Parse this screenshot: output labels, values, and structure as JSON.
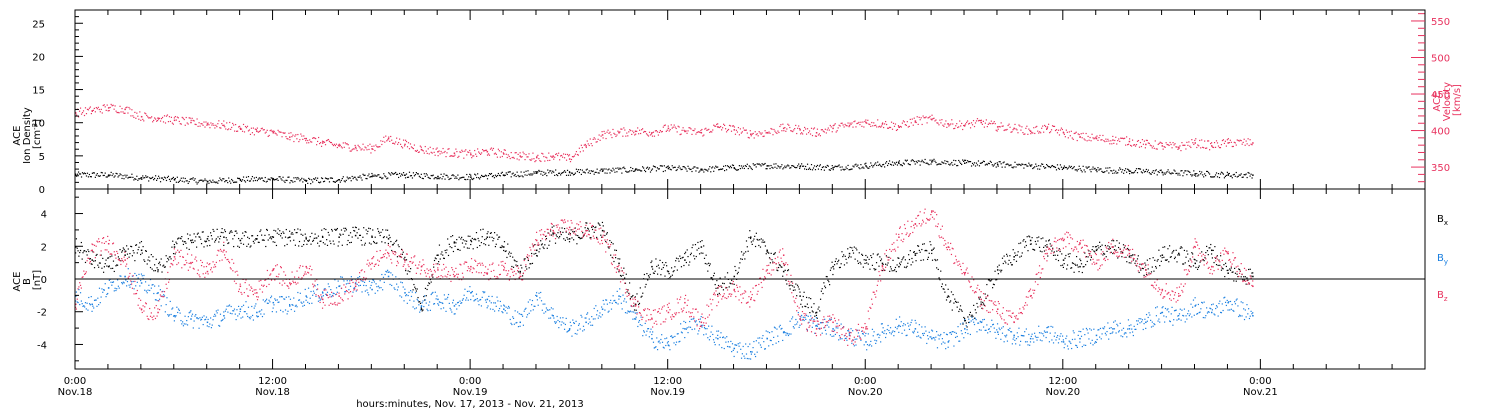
{
  "page": {
    "xaxis_title": "hours:minutes, Nov. 17, 2013 - Nov. 21, 2013",
    "time_ticks": [
      {
        "t": 0,
        "time": "0:00",
        "date": "Nov.18"
      },
      {
        "t": 12,
        "time": "12:00",
        "date": "Nov.18"
      },
      {
        "t": 24,
        "time": "0:00",
        "date": "Nov.19"
      },
      {
        "t": 36,
        "time": "12:00",
        "date": "Nov.19"
      },
      {
        "t": 48,
        "time": "0:00",
        "date": "Nov.20"
      },
      {
        "t": 60,
        "time": "12:00",
        "date": "Nov.20"
      },
      {
        "t": 72,
        "time": "0:00",
        "date": "Nov.21"
      }
    ]
  },
  "chart_data": [
    {
      "type": "scatter",
      "panel": "top",
      "ylabel": "ACE\nIon Density\n[cm^-3]",
      "ylabel_lines": [
        "ACE",
        "Ion Density",
        "[cm"
      ],
      "ylabel_sup": "-3",
      "ylabel_close": "]",
      "ylim": [
        0,
        27
      ],
      "yticks": [
        0,
        5,
        10,
        15,
        20,
        25
      ],
      "y2label_lines": [
        "ACE",
        "Velocity",
        "[km/s]"
      ],
      "y2lim": [
        320,
        565
      ],
      "y2ticks": [
        350,
        400,
        450,
        500,
        550
      ],
      "xlim_hours": [
        0,
        82
      ],
      "grid": false,
      "series": [
        {
          "role": "Ion Density",
          "axis": "left",
          "color": "#000000",
          "data_end_hours": 71.5,
          "x": [
            0,
            2,
            4,
            6,
            8,
            10,
            12,
            14,
            16,
            18,
            20,
            22,
            24,
            26,
            28,
            30,
            32,
            34,
            36,
            38,
            40,
            42,
            44,
            46,
            48,
            50,
            52,
            54,
            56,
            58,
            60,
            62,
            64,
            66,
            68,
            70,
            71.5
          ],
          "y": [
            2.2,
            2.2,
            1.8,
            1.5,
            1.2,
            1.5,
            1.6,
            1.3,
            1.5,
            2.0,
            2.2,
            2.0,
            1.9,
            2.2,
            2.5,
            2.6,
            2.8,
            3.0,
            3.2,
            3.0,
            3.3,
            3.6,
            3.5,
            3.3,
            3.6,
            4.0,
            4.2,
            4.0,
            3.8,
            3.6,
            3.3,
            3.0,
            2.8,
            2.6,
            2.4,
            2.2,
            2.2
          ]
        },
        {
          "role": "Velocity",
          "axis": "right",
          "color": "#e8325e",
          "data_end_hours": 71.5,
          "x": [
            0,
            1,
            2,
            3,
            4,
            5,
            6,
            7,
            8,
            9,
            10,
            11,
            12,
            13,
            14,
            15,
            16,
            17,
            18,
            19,
            20,
            21,
            22,
            23,
            24,
            25,
            26,
            27,
            28,
            29,
            30,
            31,
            32,
            33,
            34,
            35,
            36,
            37,
            38,
            39,
            40,
            41,
            42,
            43,
            44,
            45,
            46,
            47,
            48,
            49,
            50,
            51,
            52,
            53,
            54,
            55,
            56,
            57,
            58,
            59,
            60,
            61,
            62,
            63,
            64,
            65,
            66,
            67,
            68,
            69,
            70,
            71.5
          ],
          "y": [
            425,
            428,
            432,
            430,
            420,
            418,
            415,
            412,
            410,
            408,
            404,
            400,
            398,
            392,
            390,
            384,
            380,
            378,
            376,
            390,
            382,
            375,
            372,
            370,
            368,
            372,
            369,
            366,
            364,
            366,
            362,
            380,
            395,
            398,
            400,
            398,
            404,
            400,
            398,
            406,
            402,
            396,
            398,
            404,
            402,
            398,
            404,
            408,
            412,
            410,
            406,
            414,
            416,
            410,
            408,
            412,
            406,
            404,
            400,
            404,
            398,
            392,
            390,
            388,
            386,
            382,
            380,
            378,
            384,
            380,
            384,
            384
          ]
        }
      ]
    },
    {
      "type": "scatter",
      "panel": "bottom",
      "ylabel": "ACE\nB\n[nT]",
      "ylabel_lines": [
        "ACE",
        "B",
        "[nT]"
      ],
      "ylim": [
        -5.5,
        5.5
      ],
      "yticks": [
        -4,
        -2,
        0,
        2,
        4
      ],
      "xlim_hours": [
        0,
        82
      ],
      "grid": false,
      "zero_line": true,
      "legend_placement": "right",
      "series": [
        {
          "name": "Bx",
          "label_main": "B",
          "label_sub": "x",
          "color": "#000000",
          "data_end_hours": 71.5,
          "x": [
            0,
            1,
            2,
            3,
            4,
            5,
            6,
            7,
            8,
            9,
            10,
            11,
            12,
            13,
            14,
            15,
            16,
            17,
            18,
            19,
            20,
            21,
            22,
            23,
            24,
            25,
            26,
            27,
            28,
            29,
            30,
            31,
            32,
            33,
            34,
            35,
            36,
            37,
            38,
            39,
            40,
            41,
            42,
            43,
            44,
            45,
            46,
            47,
            48,
            49,
            50,
            51,
            52,
            53,
            54,
            55,
            56,
            57,
            58,
            59,
            60,
            61,
            62,
            63,
            64,
            65,
            66,
            67,
            68,
            69,
            70,
            71.5
          ],
          "y": [
            2.0,
            1.2,
            0.8,
            1.5,
            1.8,
            0.6,
            2.0,
            2.4,
            2.5,
            2.6,
            2.4,
            2.5,
            2.6,
            2.6,
            2.5,
            2.6,
            2.6,
            2.7,
            2.6,
            2.5,
            1.2,
            -1.8,
            1.5,
            2.3,
            2.4,
            2.6,
            2.0,
            0.5,
            1.8,
            2.8,
            2.5,
            3.0,
            3.0,
            1.0,
            -1.5,
            0.8,
            0.5,
            1.2,
            2.0,
            -0.5,
            0.2,
            2.6,
            1.8,
            0.5,
            -1.0,
            -2.0,
            0.8,
            1.6,
            1.2,
            1.0,
            0.8,
            1.5,
            1.8,
            -1.0,
            -2.5,
            -1.5,
            0.6,
            1.4,
            2.4,
            2.0,
            1.2,
            0.8,
            1.8,
            2.0,
            1.4,
            0.6,
            1.5,
            1.6,
            1.0,
            1.8,
            0.4,
            0.2
          ]
        },
        {
          "name": "By",
          "label_main": "B",
          "label_sub": "y",
          "color": "#1a7fe0",
          "data_end_hours": 71.5,
          "x": [
            0,
            1,
            2,
            3,
            4,
            5,
            6,
            7,
            8,
            9,
            10,
            11,
            12,
            13,
            14,
            15,
            16,
            17,
            18,
            19,
            20,
            21,
            22,
            23,
            24,
            25,
            26,
            27,
            28,
            29,
            30,
            31,
            32,
            33,
            34,
            35,
            36,
            37,
            38,
            39,
            40,
            41,
            42,
            43,
            44,
            45,
            46,
            47,
            48,
            49,
            50,
            51,
            52,
            53,
            54,
            55,
            56,
            57,
            58,
            59,
            60,
            61,
            62,
            63,
            64,
            65,
            66,
            67,
            68,
            69,
            70,
            71.5
          ],
          "y": [
            -1.0,
            -1.5,
            -0.5,
            0.2,
            -0.2,
            -0.8,
            -2.2,
            -2.4,
            -2.6,
            -2.2,
            -1.8,
            -2.0,
            -1.4,
            -1.6,
            -1.0,
            -0.8,
            -0.4,
            -0.2,
            -0.6,
            0.2,
            -0.8,
            -1.6,
            -1.2,
            -1.6,
            -0.8,
            -1.2,
            -1.8,
            -2.6,
            -1.0,
            -2.2,
            -3.0,
            -2.6,
            -1.8,
            -1.0,
            -2.4,
            -3.6,
            -4.0,
            -3.0,
            -2.8,
            -3.6,
            -4.2,
            -4.4,
            -3.6,
            -3.2,
            -2.4,
            -2.8,
            -3.0,
            -3.4,
            -3.8,
            -3.2,
            -2.8,
            -3.0,
            -3.6,
            -3.8,
            -3.0,
            -2.6,
            -3.2,
            -3.4,
            -3.6,
            -3.2,
            -3.8,
            -3.6,
            -3.4,
            -3.0,
            -3.0,
            -2.6,
            -2.0,
            -2.4,
            -1.6,
            -2.0,
            -1.4,
            -2.2
          ]
        },
        {
          "name": "Bz",
          "label_main": "B",
          "label_sub": "z",
          "color": "#e8325e",
          "data_end_hours": 71.5,
          "x": [
            0,
            1,
            2,
            3,
            4,
            5,
            6,
            7,
            8,
            9,
            10,
            11,
            12,
            13,
            14,
            15,
            16,
            17,
            18,
            19,
            20,
            21,
            22,
            23,
            24,
            25,
            26,
            27,
            28,
            29,
            30,
            31,
            32,
            33,
            34,
            35,
            36,
            37,
            38,
            39,
            40,
            41,
            42,
            43,
            44,
            45,
            46,
            47,
            48,
            49,
            50,
            51,
            52,
            53,
            54,
            55,
            56,
            57,
            58,
            59,
            60,
            61,
            62,
            63,
            64,
            65,
            66,
            67,
            68,
            69,
            70,
            71.5
          ],
          "y": [
            -1.5,
            1.8,
            2.2,
            1.2,
            -1.8,
            -2.0,
            1.4,
            1.0,
            0.5,
            1.8,
            -0.4,
            -0.8,
            0.6,
            -0.2,
            0.8,
            -1.2,
            -1.0,
            -0.4,
            1.0,
            1.6,
            1.2,
            0.8,
            0.6,
            0.2,
            0.8,
            0.4,
            0.6,
            0.2,
            2.4,
            3.0,
            3.2,
            3.0,
            2.6,
            0.6,
            -1.6,
            -2.4,
            -2.0,
            -1.4,
            -2.6,
            -1.0,
            -0.6,
            -1.2,
            0.6,
            1.5,
            -2.4,
            -3.0,
            -2.6,
            -3.6,
            -3.0,
            0.8,
            2.6,
            3.4,
            4.2,
            2.0,
            0.4,
            -1.2,
            -1.8,
            -2.6,
            -1.0,
            1.6,
            2.4,
            2.2,
            1.0,
            2.0,
            1.6,
            0.6,
            -0.6,
            -1.0,
            2.0,
            0.8,
            1.6,
            -0.4
          ]
        }
      ]
    }
  ]
}
